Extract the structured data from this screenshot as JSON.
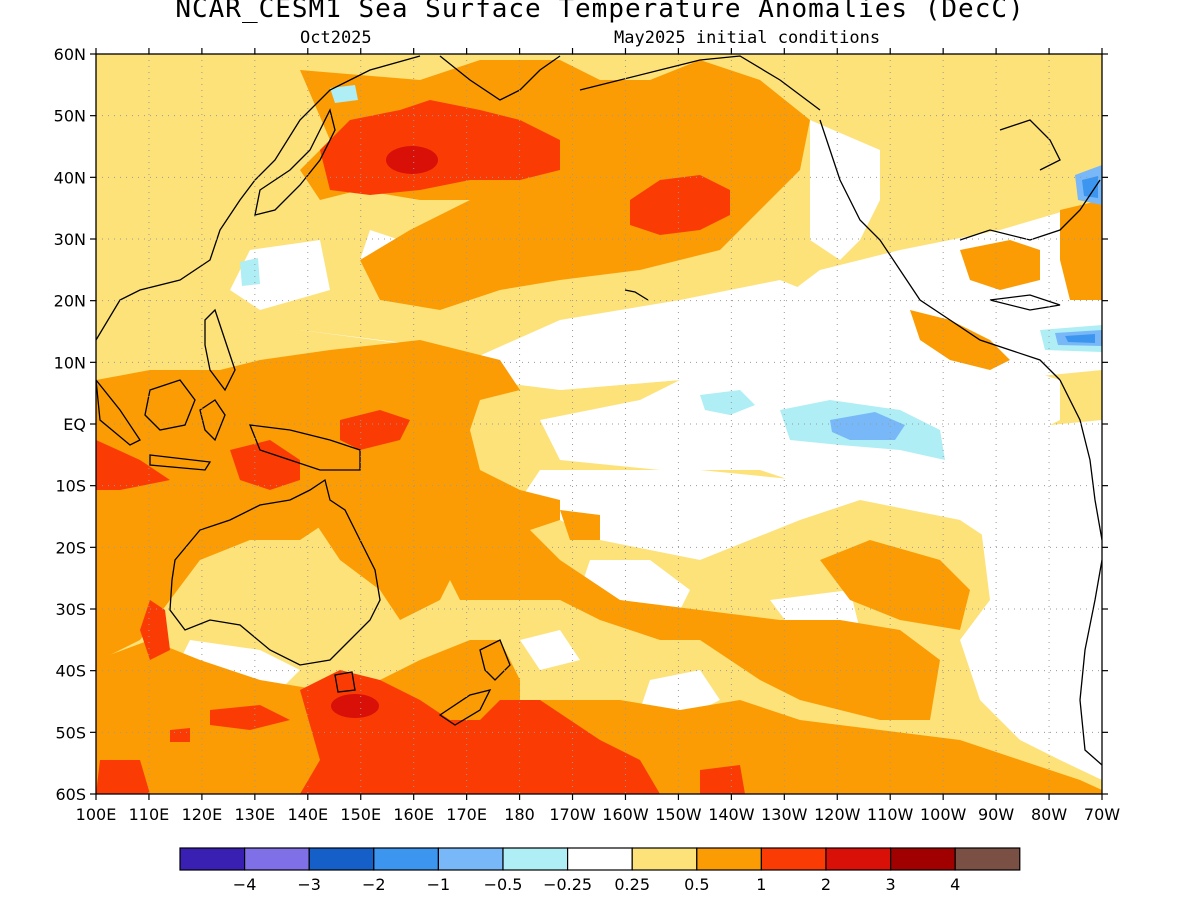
{
  "header": {
    "title": "NCAR_CESM1 Sea Surface Temperature Anomalies (DecC)",
    "valid_month": "Oct2025",
    "init": "May2025 initial conditions"
  },
  "axes": {
    "lat_labels": [
      "60N",
      "50N",
      "40N",
      "30N",
      "20N",
      "10N",
      "EQ",
      "10S",
      "20S",
      "30S",
      "40S",
      "50S",
      "60S"
    ],
    "lon_labels": [
      "100E",
      "110E",
      "120E",
      "130E",
      "140E",
      "150E",
      "160E",
      "170E",
      "180",
      "170W",
      "160W",
      "150W",
      "140W",
      "130W",
      "120W",
      "110W",
      "100W",
      "90W",
      "80W",
      "70W"
    ],
    "lat_range": [
      -60,
      60
    ],
    "lon_range": [
      100,
      290
    ],
    "grid": "dotted"
  },
  "colorbar": {
    "colors": [
      "#3a1fb3",
      "#8070e8",
      "#1460c8",
      "#3c96f0",
      "#78b8f8",
      "#aeeef4",
      "#ffffff",
      "#fde27a",
      "#fb9c04",
      "#fa3c04",
      "#d81008",
      "#a00000",
      "#7a5044"
    ],
    "tick_labels": [
      "−4",
      "−3",
      "−2",
      "−1",
      "−0.5",
      "−0.25",
      "0.25",
      "0.5",
      "1",
      "2",
      "3",
      "4"
    ]
  },
  "legend_colors": {
    "w": "#ffffff",
    "y": "#fde27a",
    "o": "#fb9c04",
    "r": "#fa3c04",
    "d": "#d81008",
    "c": "#aeeef4",
    "b": "#78b8f8",
    "m": "#3c96f0"
  }
}
